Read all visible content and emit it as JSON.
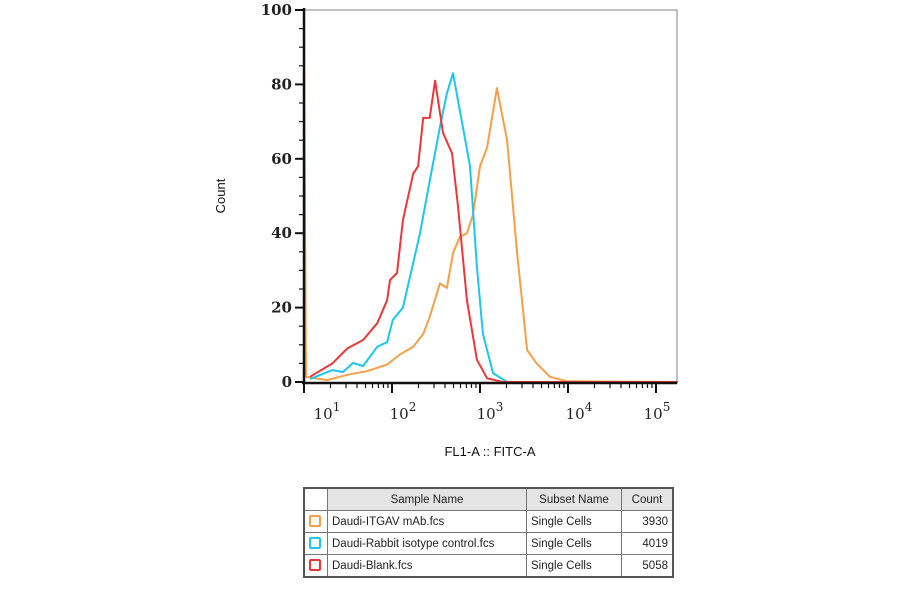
{
  "chart_data": {
    "type": "line",
    "xlabel": "FL1-A :: FITC-A",
    "ylabel": "Count",
    "x_scale": "log",
    "xlim": [
      10,
      178000
    ],
    "ylim": [
      0,
      100
    ],
    "y_ticks": [
      "0",
      "20",
      "40",
      "60",
      "80",
      "100"
    ],
    "x_ticks": [
      {
        "base": "10",
        "exp": "1"
      },
      {
        "base": "10",
        "exp": "2"
      },
      {
        "base": "10",
        "exp": "3"
      },
      {
        "base": "10",
        "exp": "4"
      },
      {
        "base": "10",
        "exp": "5"
      }
    ],
    "grid": false,
    "legend_placement": "bottom (table)",
    "series": [
      {
        "name": "Daudi-ITGAV mAb.fcs",
        "color": "#f5a048",
        "x": [
          10,
          10.5,
          18.2,
          33.3,
          52,
          88,
          123,
          174,
          226,
          268,
          350,
          421,
          494,
          590,
          709,
          832,
          1000,
          1203,
          1556,
          2030,
          2620,
          3430,
          4400,
          6250,
          9750,
          178000
        ],
        "y": [
          97,
          1.4,
          0.5,
          2.1,
          2.9,
          4.7,
          7.4,
          9.5,
          12.9,
          17.5,
          26.5,
          25.3,
          34.6,
          39,
          40,
          45,
          58,
          63,
          79,
          65,
          35.5,
          8.6,
          5,
          1.4,
          0.2,
          0
        ]
      },
      {
        "name": "Daudi-Rabbit isotype control.fcs",
        "color": "#1ec6ee",
        "x": [
          11.7,
          21,
          27.7,
          36,
          47,
          68,
          88,
          102,
          133,
          174,
          208,
          268,
          350,
          421,
          494,
          640,
          770,
          923,
          1078,
          1404,
          2030,
          178000
        ],
        "y": [
          0.8,
          3.2,
          2.7,
          5.1,
          4.3,
          9.5,
          10.7,
          16.7,
          20,
          32,
          40,
          54,
          68.5,
          77.6,
          83,
          68.5,
          58,
          31,
          13,
          2.4,
          0,
          0
        ]
      },
      {
        "name": "Daudi-Blank.fcs",
        "color": "#e8383c",
        "x": [
          11.7,
          21,
          31,
          47,
          68,
          88,
          95,
          114,
          133,
          174,
          198,
          226,
          268,
          309,
          380,
          481,
          564,
          709,
          923,
          1203,
          1826,
          178000
        ],
        "y": [
          1.4,
          5,
          9,
          11.3,
          15.8,
          22,
          27.4,
          29.3,
          43.5,
          56,
          58,
          71,
          71,
          81,
          67,
          61.5,
          47,
          22,
          6,
          1,
          0,
          0
        ]
      }
    ]
  },
  "table": {
    "headers": {
      "sample": "Sample Name",
      "subset": "Subset Name",
      "count": "Count"
    },
    "rows": [
      {
        "sample": "Daudi-ITGAV mAb.fcs",
        "subset": "Single Cells",
        "count": "3930",
        "color": "#f5a048"
      },
      {
        "sample": "Daudi-Rabbit isotype control.fcs",
        "subset": "Single Cells",
        "count": "4019",
        "color": "#1ec6ee"
      },
      {
        "sample": "Daudi-Blank.fcs",
        "subset": "Single Cells",
        "count": "5058",
        "color": "#e8383c"
      }
    ]
  }
}
